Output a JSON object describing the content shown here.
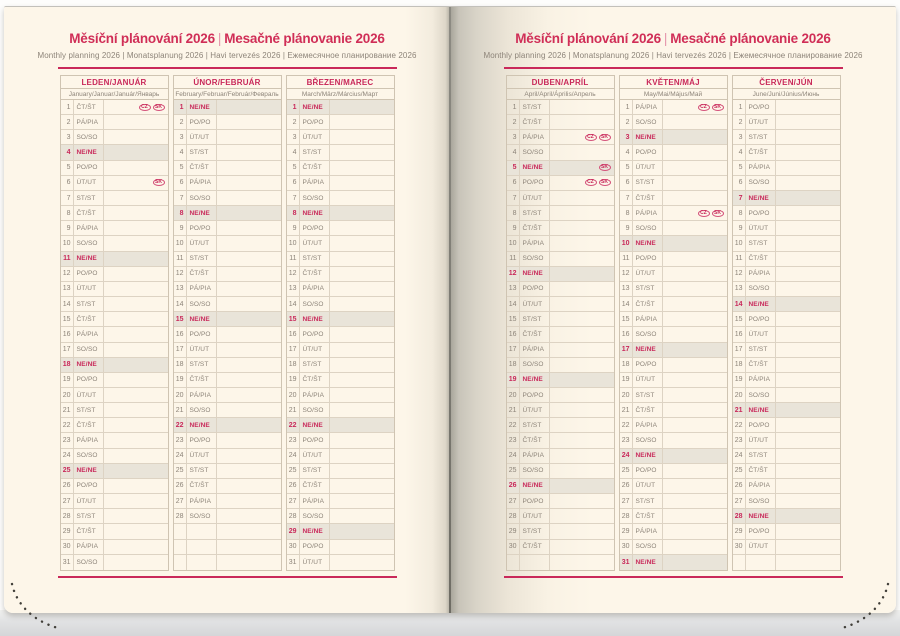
{
  "header": {
    "title_cs": "Měsíční plánování 2026",
    "title_sep": "|",
    "title_sk": "Mesačné plánovanie 2026",
    "subtitle": "Monthly planning 2026 | Monatsplanung 2026 | Havi tervezés 2026 | Ежемесячное планирование 2026"
  },
  "colors": {
    "accent": "#c9295a",
    "muted_text": "#8d8479",
    "grid_line": "#ddd3c3",
    "sunday_fill": "#e9e4d9",
    "page_cream": "#fdf6e9"
  },
  "layout": {
    "rows_per_column": 31,
    "left_page_months": [
      0,
      1,
      2
    ],
    "right_page_months": [
      3,
      4,
      5
    ]
  },
  "badge_labels": {
    "czech": "CZ",
    "slovak": "SK"
  },
  "months": [
    {
      "id": "leden",
      "name": "LEDEN/JANUÁR",
      "languages": "January/Januar/Január/Январь",
      "days": [
        {
          "n": 1,
          "d": "ČT/ŠT",
          "b": [
            "CZ",
            "SK"
          ]
        },
        {
          "n": 2,
          "d": "PÁ/PIA"
        },
        {
          "n": 3,
          "d": "SO/SO"
        },
        {
          "n": 4,
          "d": "NE/NE",
          "s": true
        },
        {
          "n": 5,
          "d": "PO/PO"
        },
        {
          "n": 6,
          "d": "ÚT/UT",
          "b": [
            "SK"
          ]
        },
        {
          "n": 7,
          "d": "ST/ST"
        },
        {
          "n": 8,
          "d": "ČT/ŠT"
        },
        {
          "n": 9,
          "d": "PÁ/PIA"
        },
        {
          "n": 10,
          "d": "SO/SO"
        },
        {
          "n": 11,
          "d": "NE/NE",
          "s": true
        },
        {
          "n": 12,
          "d": "PO/PO"
        },
        {
          "n": 13,
          "d": "ÚT/UT"
        },
        {
          "n": 14,
          "d": "ST/ST"
        },
        {
          "n": 15,
          "d": "ČT/ŠT"
        },
        {
          "n": 16,
          "d": "PÁ/PIA"
        },
        {
          "n": 17,
          "d": "SO/SO"
        },
        {
          "n": 18,
          "d": "NE/NE",
          "s": true
        },
        {
          "n": 19,
          "d": "PO/PO"
        },
        {
          "n": 20,
          "d": "ÚT/UT"
        },
        {
          "n": 21,
          "d": "ST/ST"
        },
        {
          "n": 22,
          "d": "ČT/ŠT"
        },
        {
          "n": 23,
          "d": "PÁ/PIA"
        },
        {
          "n": 24,
          "d": "SO/SO"
        },
        {
          "n": 25,
          "d": "NE/NE",
          "s": true
        },
        {
          "n": 26,
          "d": "PO/PO"
        },
        {
          "n": 27,
          "d": "ÚT/UT"
        },
        {
          "n": 28,
          "d": "ST/ST"
        },
        {
          "n": 29,
          "d": "ČT/ŠT"
        },
        {
          "n": 30,
          "d": "PÁ/PIA"
        },
        {
          "n": 31,
          "d": "SO/SO"
        }
      ]
    },
    {
      "id": "unor",
      "name": "ÚNOR/FEBRUÁR",
      "languages": "February/Februar/Február/Февраль",
      "days": [
        {
          "n": 1,
          "d": "NE/NE",
          "s": true
        },
        {
          "n": 2,
          "d": "PO/PO"
        },
        {
          "n": 3,
          "d": "ÚT/UT"
        },
        {
          "n": 4,
          "d": "ST/ST"
        },
        {
          "n": 5,
          "d": "ČT/ŠT"
        },
        {
          "n": 6,
          "d": "PÁ/PIA"
        },
        {
          "n": 7,
          "d": "SO/SO"
        },
        {
          "n": 8,
          "d": "NE/NE",
          "s": true
        },
        {
          "n": 9,
          "d": "PO/PO"
        },
        {
          "n": 10,
          "d": "ÚT/UT"
        },
        {
          "n": 11,
          "d": "ST/ST"
        },
        {
          "n": 12,
          "d": "ČT/ŠT"
        },
        {
          "n": 13,
          "d": "PÁ/PIA"
        },
        {
          "n": 14,
          "d": "SO/SO"
        },
        {
          "n": 15,
          "d": "NE/NE",
          "s": true
        },
        {
          "n": 16,
          "d": "PO/PO"
        },
        {
          "n": 17,
          "d": "ÚT/UT"
        },
        {
          "n": 18,
          "d": "ST/ST"
        },
        {
          "n": 19,
          "d": "ČT/ŠT"
        },
        {
          "n": 20,
          "d": "PÁ/PIA"
        },
        {
          "n": 21,
          "d": "SO/SO"
        },
        {
          "n": 22,
          "d": "NE/NE",
          "s": true
        },
        {
          "n": 23,
          "d": "PO/PO"
        },
        {
          "n": 24,
          "d": "ÚT/UT"
        },
        {
          "n": 25,
          "d": "ST/ST"
        },
        {
          "n": 26,
          "d": "ČT/ŠT"
        },
        {
          "n": 27,
          "d": "PÁ/PIA"
        },
        {
          "n": 28,
          "d": "SO/SO"
        }
      ]
    },
    {
      "id": "brezen",
      "name": "BŘEZEN/MAREC",
      "languages": "March/März/Március/Март",
      "days": [
        {
          "n": 1,
          "d": "NE/NE",
          "s": true
        },
        {
          "n": 2,
          "d": "PO/PO"
        },
        {
          "n": 3,
          "d": "ÚT/UT"
        },
        {
          "n": 4,
          "d": "ST/ST"
        },
        {
          "n": 5,
          "d": "ČT/ŠT"
        },
        {
          "n": 6,
          "d": "PÁ/PIA"
        },
        {
          "n": 7,
          "d": "SO/SO"
        },
        {
          "n": 8,
          "d": "NE/NE",
          "s": true
        },
        {
          "n": 9,
          "d": "PO/PO"
        },
        {
          "n": 10,
          "d": "ÚT/UT"
        },
        {
          "n": 11,
          "d": "ST/ST"
        },
        {
          "n": 12,
          "d": "ČT/ŠT"
        },
        {
          "n": 13,
          "d": "PÁ/PIA"
        },
        {
          "n": 14,
          "d": "SO/SO"
        },
        {
          "n": 15,
          "d": "NE/NE",
          "s": true
        },
        {
          "n": 16,
          "d": "PO/PO"
        },
        {
          "n": 17,
          "d": "ÚT/UT"
        },
        {
          "n": 18,
          "d": "ST/ST"
        },
        {
          "n": 19,
          "d": "ČT/ŠT"
        },
        {
          "n": 20,
          "d": "PÁ/PIA"
        },
        {
          "n": 21,
          "d": "SO/SO"
        },
        {
          "n": 22,
          "d": "NE/NE",
          "s": true
        },
        {
          "n": 23,
          "d": "PO/PO"
        },
        {
          "n": 24,
          "d": "ÚT/UT"
        },
        {
          "n": 25,
          "d": "ST/ST"
        },
        {
          "n": 26,
          "d": "ČT/ŠT"
        },
        {
          "n": 27,
          "d": "PÁ/PIA"
        },
        {
          "n": 28,
          "d": "SO/SO"
        },
        {
          "n": 29,
          "d": "NE/NE",
          "s": true
        },
        {
          "n": 30,
          "d": "PO/PO"
        },
        {
          "n": 31,
          "d": "ÚT/UT"
        }
      ]
    },
    {
      "id": "duben",
      "name": "DUBEN/APRÍL",
      "languages": "April/April/Április/Апрель",
      "days": [
        {
          "n": 1,
          "d": "ST/ST"
        },
        {
          "n": 2,
          "d": "ČT/ŠT"
        },
        {
          "n": 3,
          "d": "PÁ/PIA",
          "b": [
            "CZ",
            "SK"
          ]
        },
        {
          "n": 4,
          "d": "SO/SO"
        },
        {
          "n": 5,
          "d": "NE/NE",
          "s": true,
          "b": [
            "SK"
          ]
        },
        {
          "n": 6,
          "d": "PO/PO",
          "b": [
            "CZ",
            "SK"
          ]
        },
        {
          "n": 7,
          "d": "ÚT/UT"
        },
        {
          "n": 8,
          "d": "ST/ST"
        },
        {
          "n": 9,
          "d": "ČT/ŠT"
        },
        {
          "n": 10,
          "d": "PÁ/PIA"
        },
        {
          "n": 11,
          "d": "SO/SO"
        },
        {
          "n": 12,
          "d": "NE/NE",
          "s": true
        },
        {
          "n": 13,
          "d": "PO/PO"
        },
        {
          "n": 14,
          "d": "ÚT/UT"
        },
        {
          "n": 15,
          "d": "ST/ST"
        },
        {
          "n": 16,
          "d": "ČT/ŠT"
        },
        {
          "n": 17,
          "d": "PÁ/PIA"
        },
        {
          "n": 18,
          "d": "SO/SO"
        },
        {
          "n": 19,
          "d": "NE/NE",
          "s": true
        },
        {
          "n": 20,
          "d": "PO/PO"
        },
        {
          "n": 21,
          "d": "ÚT/UT"
        },
        {
          "n": 22,
          "d": "ST/ST"
        },
        {
          "n": 23,
          "d": "ČT/ŠT"
        },
        {
          "n": 24,
          "d": "PÁ/PIA"
        },
        {
          "n": 25,
          "d": "SO/SO"
        },
        {
          "n": 26,
          "d": "NE/NE",
          "s": true
        },
        {
          "n": 27,
          "d": "PO/PO"
        },
        {
          "n": 28,
          "d": "ÚT/UT"
        },
        {
          "n": 29,
          "d": "ST/ST"
        },
        {
          "n": 30,
          "d": "ČT/ŠT"
        }
      ]
    },
    {
      "id": "kveten",
      "name": "KVĚTEN/MÁJ",
      "languages": "May/Mai/Május/Май",
      "days": [
        {
          "n": 1,
          "d": "PÁ/PIA",
          "b": [
            "CZ",
            "SK"
          ]
        },
        {
          "n": 2,
          "d": "SO/SO"
        },
        {
          "n": 3,
          "d": "NE/NE",
          "s": true
        },
        {
          "n": 4,
          "d": "PO/PO"
        },
        {
          "n": 5,
          "d": "ÚT/UT"
        },
        {
          "n": 6,
          "d": "ST/ST"
        },
        {
          "n": 7,
          "d": "ČT/ŠT"
        },
        {
          "n": 8,
          "d": "PÁ/PIA",
          "b": [
            "CZ",
            "SK"
          ]
        },
        {
          "n": 9,
          "d": "SO/SO"
        },
        {
          "n": 10,
          "d": "NE/NE",
          "s": true
        },
        {
          "n": 11,
          "d": "PO/PO"
        },
        {
          "n": 12,
          "d": "ÚT/UT"
        },
        {
          "n": 13,
          "d": "ST/ST"
        },
        {
          "n": 14,
          "d": "ČT/ŠT"
        },
        {
          "n": 15,
          "d": "PÁ/PIA"
        },
        {
          "n": 16,
          "d": "SO/SO"
        },
        {
          "n": 17,
          "d": "NE/NE",
          "s": true
        },
        {
          "n": 18,
          "d": "PO/PO"
        },
        {
          "n": 19,
          "d": "ÚT/UT"
        },
        {
          "n": 20,
          "d": "ST/ST"
        },
        {
          "n": 21,
          "d": "ČT/ŠT"
        },
        {
          "n": 22,
          "d": "PÁ/PIA"
        },
        {
          "n": 23,
          "d": "SO/SO"
        },
        {
          "n": 24,
          "d": "NE/NE",
          "s": true
        },
        {
          "n": 25,
          "d": "PO/PO"
        },
        {
          "n": 26,
          "d": "ÚT/UT"
        },
        {
          "n": 27,
          "d": "ST/ST"
        },
        {
          "n": 28,
          "d": "ČT/ŠT"
        },
        {
          "n": 29,
          "d": "PÁ/PIA"
        },
        {
          "n": 30,
          "d": "SO/SO"
        },
        {
          "n": 31,
          "d": "NE/NE",
          "s": true
        }
      ]
    },
    {
      "id": "cerven",
      "name": "ČERVEN/JÚN",
      "languages": "June/Juni/Június/Июнь",
      "days": [
        {
          "n": 1,
          "d": "PO/PO"
        },
        {
          "n": 2,
          "d": "ÚT/UT"
        },
        {
          "n": 3,
          "d": "ST/ST"
        },
        {
          "n": 4,
          "d": "ČT/ŠT"
        },
        {
          "n": 5,
          "d": "PÁ/PIA"
        },
        {
          "n": 6,
          "d": "SO/SO"
        },
        {
          "n": 7,
          "d": "NE/NE",
          "s": true
        },
        {
          "n": 8,
          "d": "PO/PO"
        },
        {
          "n": 9,
          "d": "ÚT/UT"
        },
        {
          "n": 10,
          "d": "ST/ST"
        },
        {
          "n": 11,
          "d": "ČT/ŠT"
        },
        {
          "n": 12,
          "d": "PÁ/PIA"
        },
        {
          "n": 13,
          "d": "SO/SO"
        },
        {
          "n": 14,
          "d": "NE/NE",
          "s": true
        },
        {
          "n": 15,
          "d": "PO/PO"
        },
        {
          "n": 16,
          "d": "ÚT/UT"
        },
        {
          "n": 17,
          "d": "ST/ST"
        },
        {
          "n": 18,
          "d": "ČT/ŠT"
        },
        {
          "n": 19,
          "d": "PÁ/PIA"
        },
        {
          "n": 20,
          "d": "SO/SO"
        },
        {
          "n": 21,
          "d": "NE/NE",
          "s": true
        },
        {
          "n": 22,
          "d": "PO/PO"
        },
        {
          "n": 23,
          "d": "ÚT/UT"
        },
        {
          "n": 24,
          "d": "ST/ST"
        },
        {
          "n": 25,
          "d": "ČT/ŠT"
        },
        {
          "n": 26,
          "d": "PÁ/PIA"
        },
        {
          "n": 27,
          "d": "SO/SO"
        },
        {
          "n": 28,
          "d": "NE/NE",
          "s": true
        },
        {
          "n": 29,
          "d": "PO/PO"
        },
        {
          "n": 30,
          "d": "ÚT/UT"
        }
      ]
    }
  ]
}
